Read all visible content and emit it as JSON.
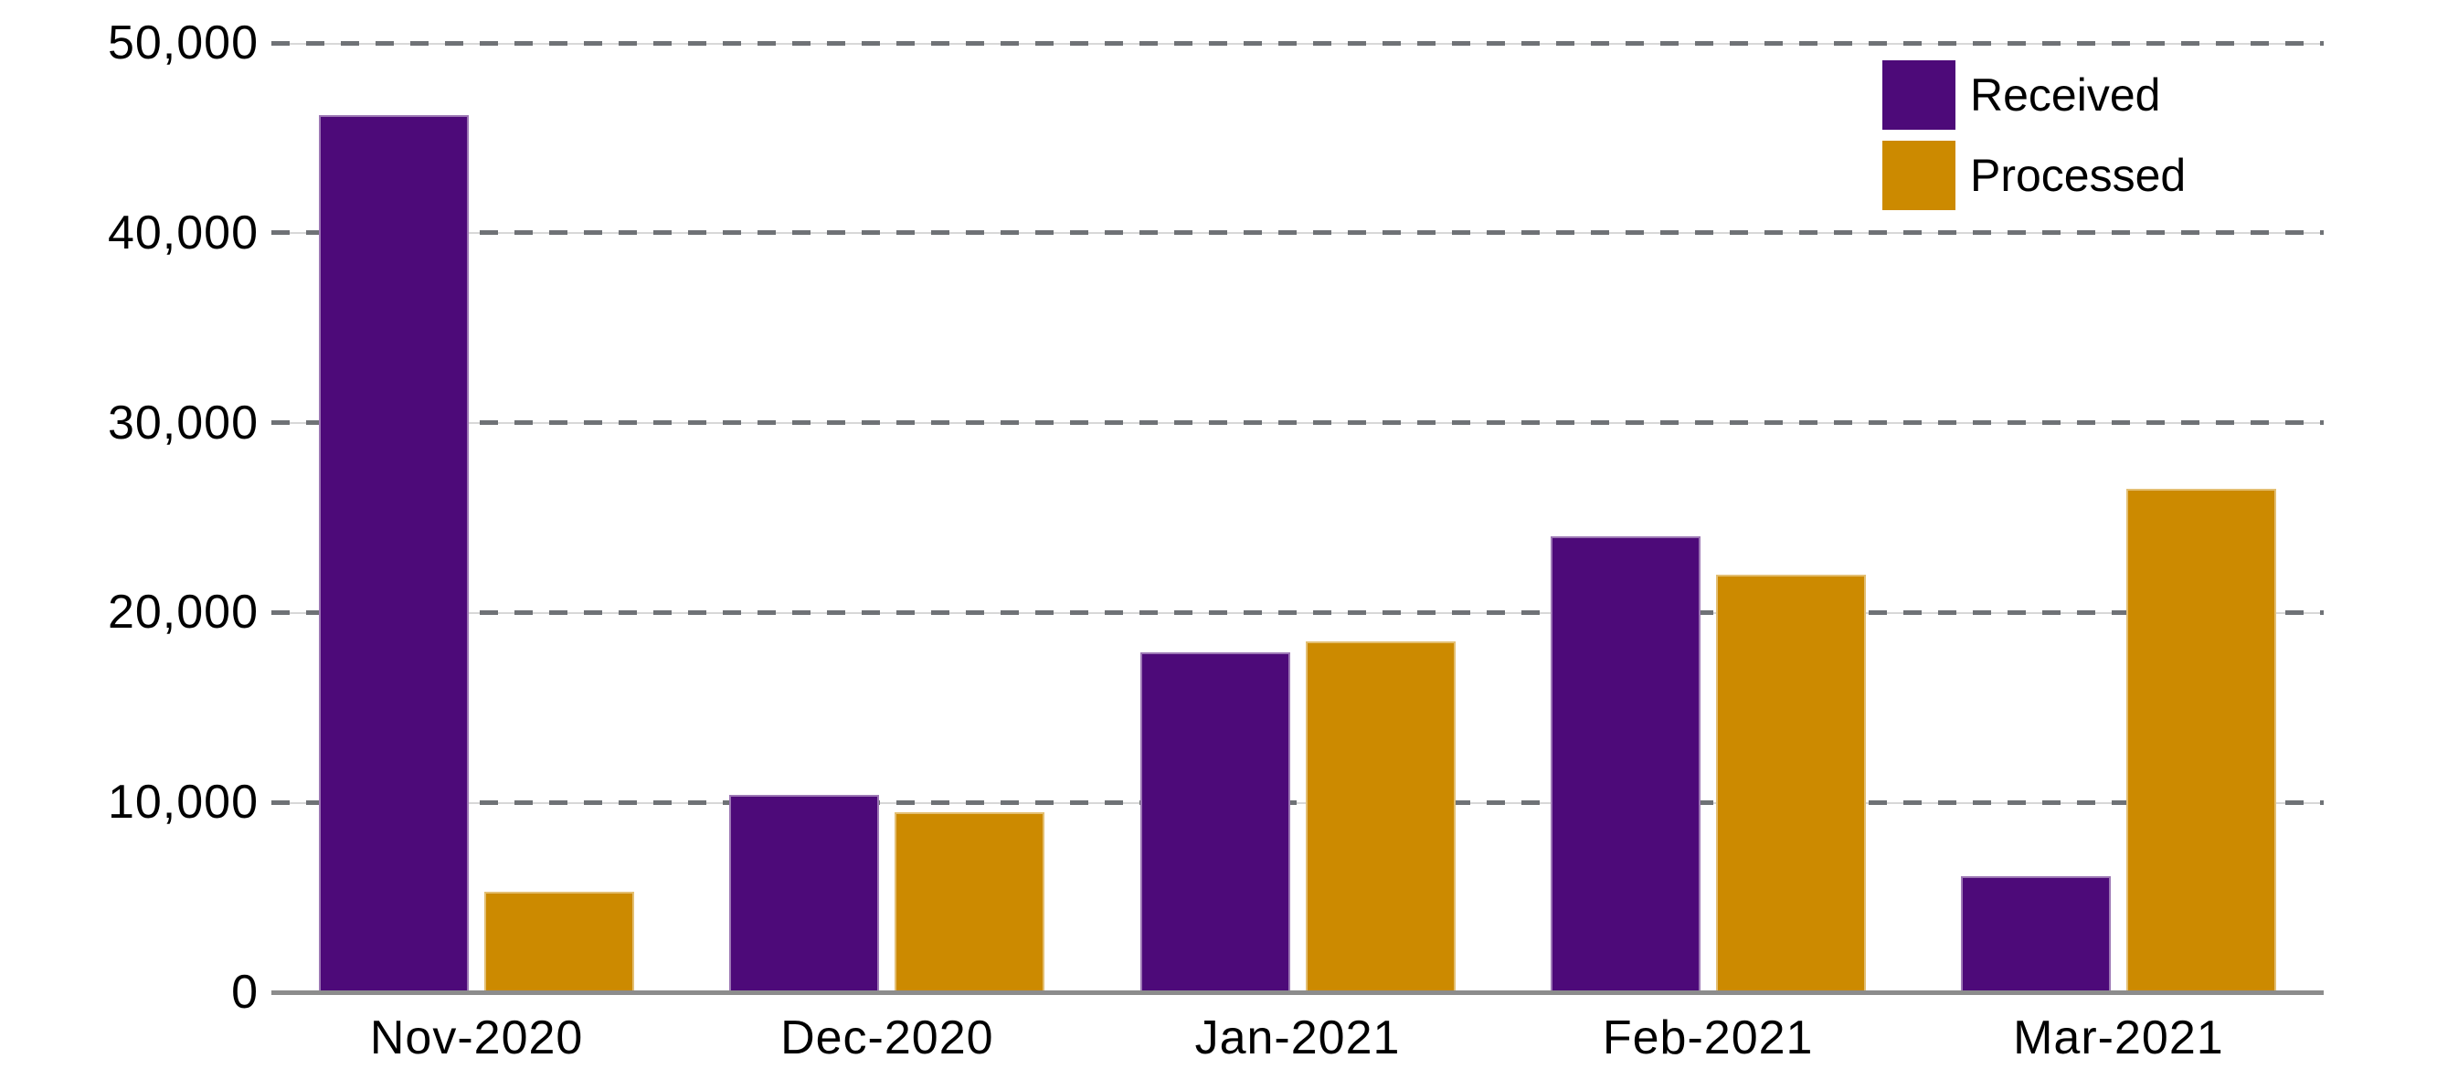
{
  "chart_data": {
    "type": "bar",
    "categories": [
      "Nov-2020",
      "Dec-2020",
      "Jan-2021",
      "Feb-2021",
      "Mar-2021"
    ],
    "series": [
      {
        "name": "Received",
        "color": "#4D0A79",
        "values": [
          46200,
          10400,
          17900,
          24000,
          6100
        ]
      },
      {
        "name": "Processed",
        "color": "#CC8A00",
        "values": [
          5300,
          9500,
          18500,
          22000,
          26500
        ]
      }
    ],
    "ylim": [
      0,
      50000
    ],
    "ytick_interval": 10000,
    "ytick_labels": [
      "0",
      "10,000",
      "20,000",
      "30,000",
      "40,000",
      "50,000"
    ],
    "grid": "horizontal-dashed",
    "legend_position": "top-right"
  },
  "colors": {
    "received": "#4D0A79",
    "processed": "#CC8A00",
    "gridline_dash": "#6F7276",
    "gridline_base": "#D8D8D8",
    "axis_line": "#8C8C8C",
    "text": "#000000",
    "background": "#FFFFFF"
  }
}
